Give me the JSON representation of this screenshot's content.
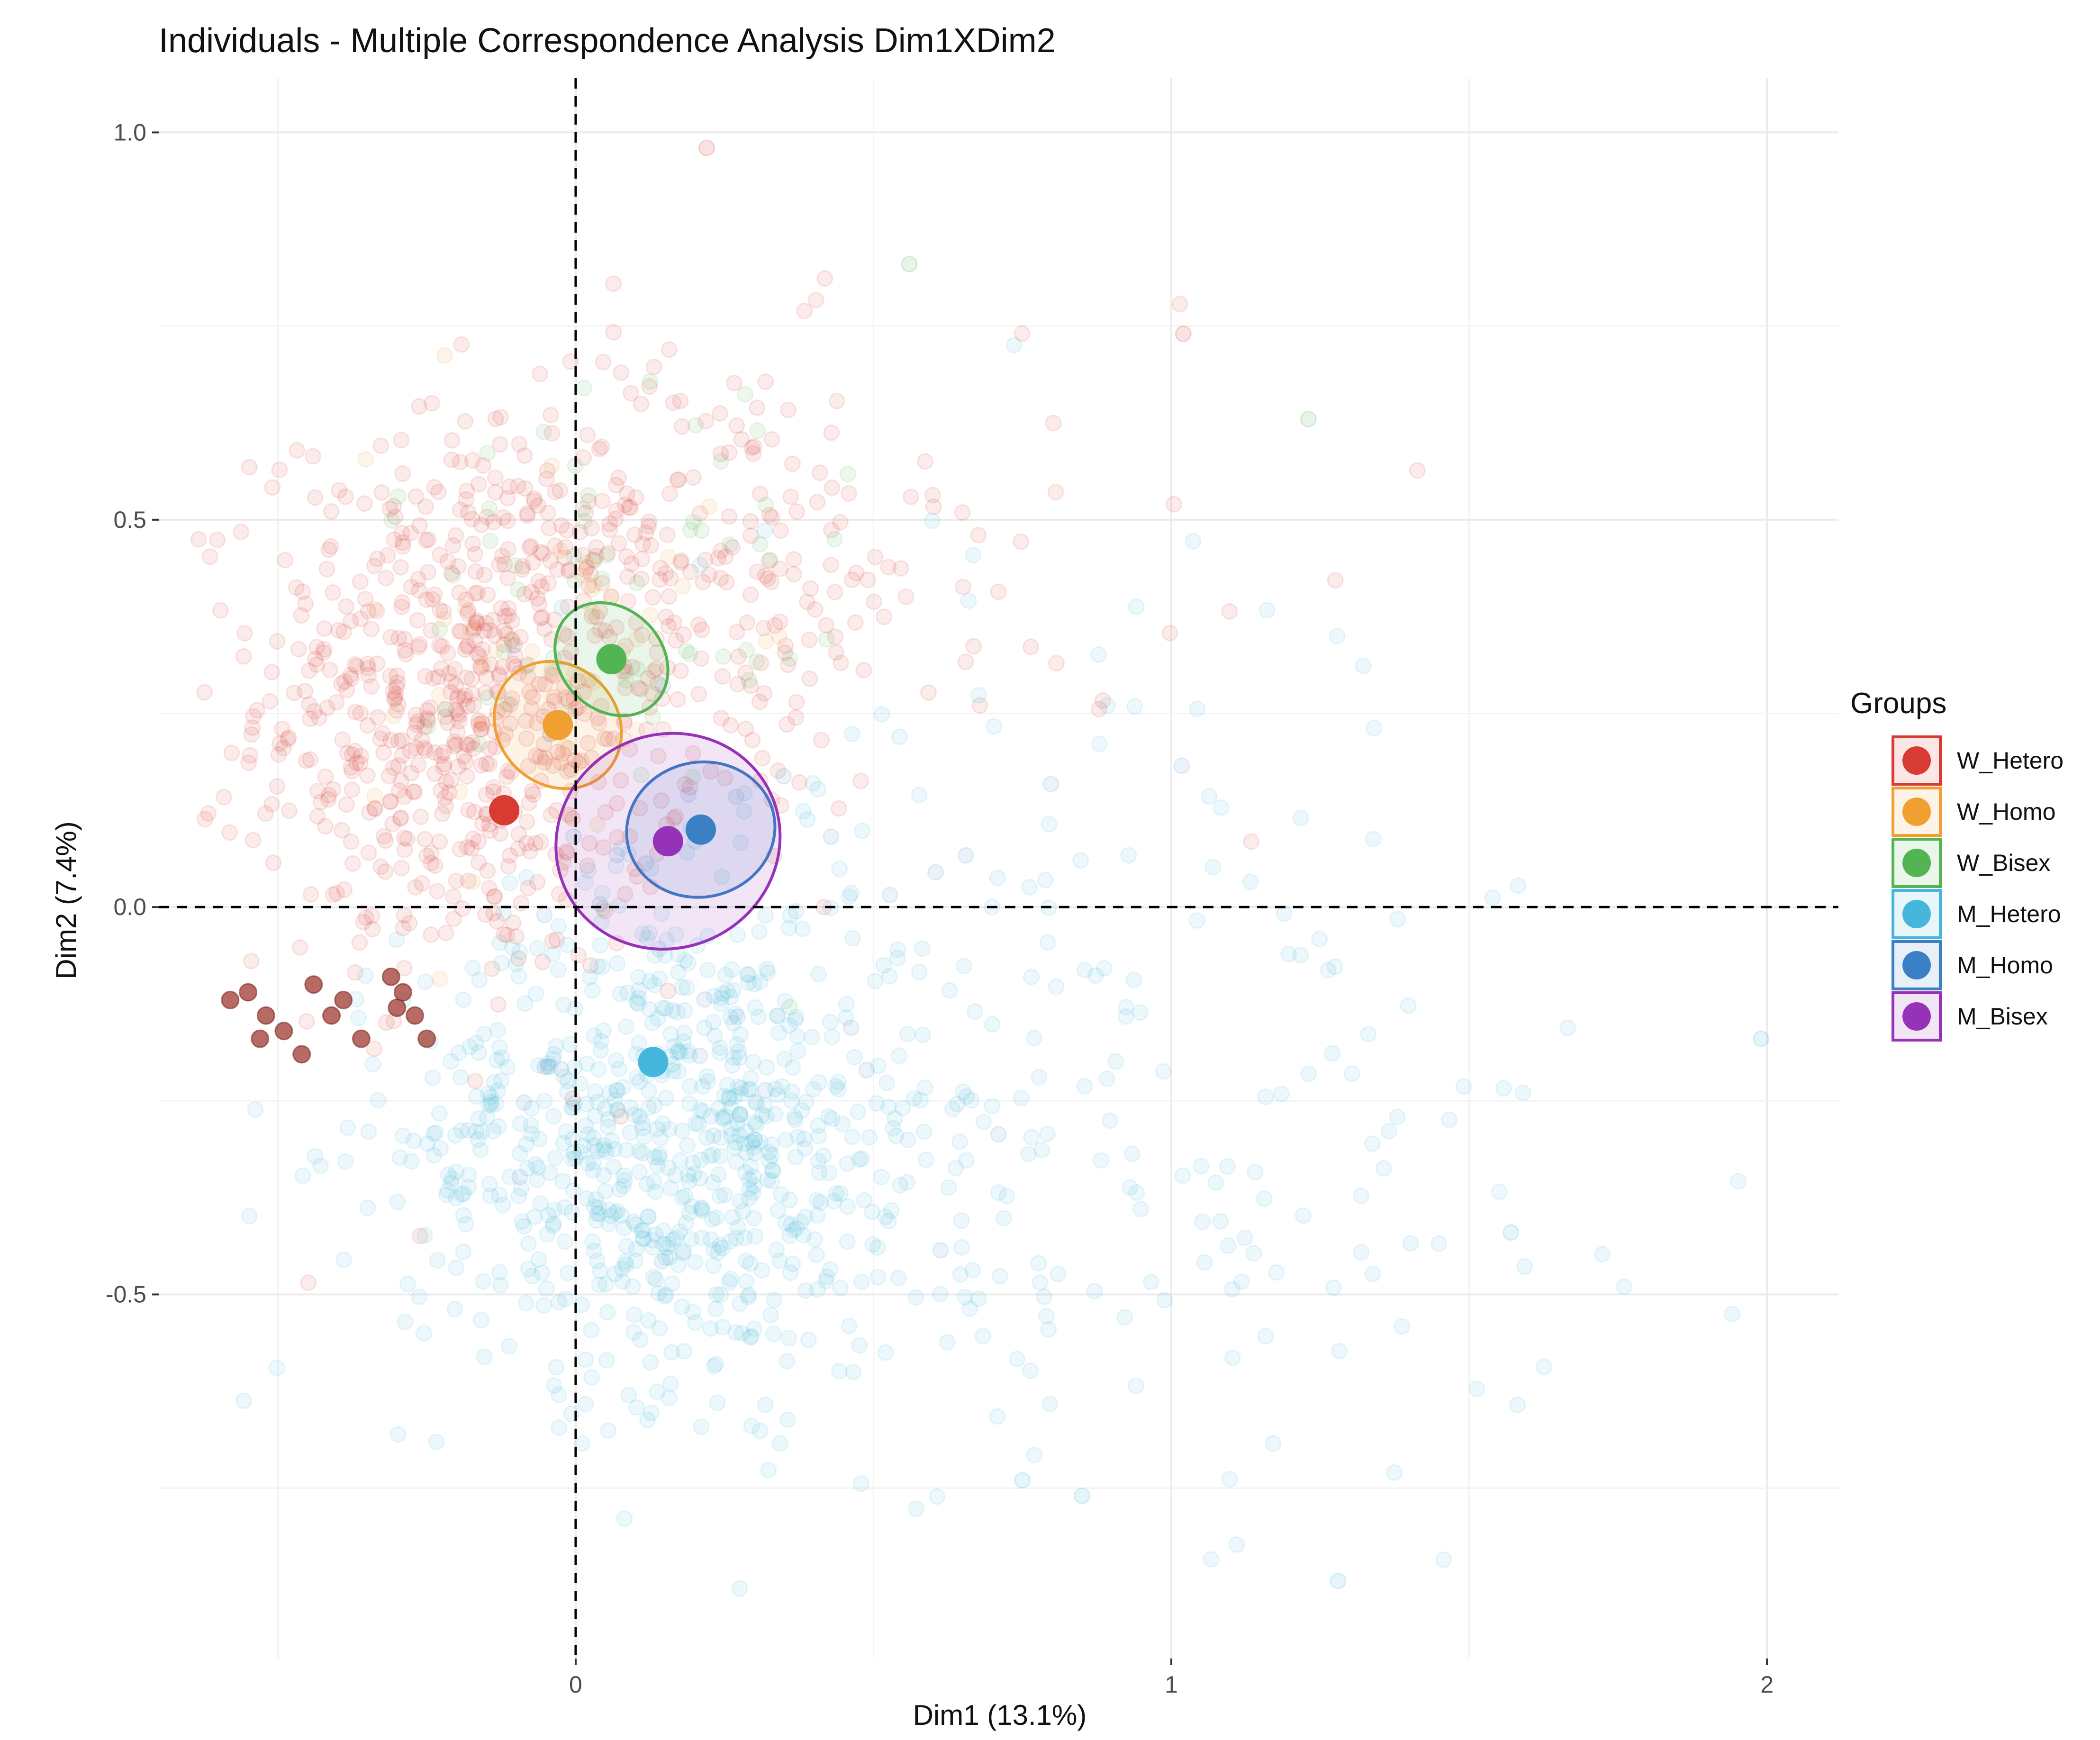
{
  "chart_data": {
    "type": "scatter",
    "title": "Individuals - Multiple Correspondence Analysis Dim1XDim2",
    "xlabel": "Dim1 (13.1%)",
    "ylabel": "Dim2 (7.4%)",
    "xlim": [
      -0.7,
      2.12
    ],
    "ylim": [
      -0.97,
      1.07
    ],
    "x_ticks": [
      {
        "value": 0,
        "label": "0"
      },
      {
        "value": 1,
        "label": "1"
      },
      {
        "value": 2,
        "label": "2"
      }
    ],
    "y_ticks": [
      {
        "value": 1.0,
        "label": "1.0"
      },
      {
        "value": 0.5,
        "label": "0.5"
      },
      {
        "value": 0.0,
        "label": "0.0"
      },
      {
        "value": -0.5,
        "label": "-0.5"
      }
    ],
    "reference_lines": {
      "x": 0,
      "y": 0,
      "style": "dashed"
    },
    "grid": true,
    "legend": {
      "title": "Groups",
      "position": "right"
    },
    "groups": [
      {
        "name": "W_Hetero",
        "color": "#d73b32",
        "centroid": [
          -0.12,
          0.125
        ]
      },
      {
        "name": "W_Homo",
        "color": "#f0a030",
        "centroid": [
          -0.03,
          0.235
        ],
        "ellipse": {
          "rx": 0.1,
          "ry": 0.06,
          "angle_deg": -45
        }
      },
      {
        "name": "W_Bisex",
        "color": "#52b453",
        "centroid": [
          0.06,
          0.32
        ],
        "ellipse": {
          "rx": 0.085,
          "ry": 0.055,
          "angle_deg": -45
        }
      },
      {
        "name": "M_Hetero",
        "color": "#45b6dc",
        "centroid": [
          0.13,
          -0.2
        ]
      },
      {
        "name": "M_Homo",
        "color": "#3b7fc4",
        "centroid": [
          0.21,
          0.1
        ],
        "ellipse": {
          "rx": 0.125,
          "ry": 0.06,
          "angle_deg": -12
        }
      },
      {
        "name": "M_Bisex",
        "color": "#9632b8",
        "centroid": [
          0.155,
          0.085
        ],
        "ellipse": {
          "rx": 0.19,
          "ry": 0.095,
          "angle_deg": -25
        }
      }
    ],
    "individuals": [
      {
        "group": "W_Hetero",
        "count": 700,
        "center": [
          -0.17,
          0.27
        ],
        "spread": [
          0.18,
          0.18
        ]
      },
      {
        "group": "W_Hetero",
        "count": 160,
        "center": [
          0.25,
          0.42
        ],
        "spread": [
          0.18,
          0.16
        ]
      },
      {
        "group": "W_Hetero",
        "count": 30,
        "center": [
          0.75,
          0.45
        ],
        "spread": [
          0.3,
          0.18
        ]
      },
      {
        "group": "M_Hetero",
        "count": 700,
        "center": [
          0.15,
          -0.3
        ],
        "spread": [
          0.22,
          0.16
        ]
      },
      {
        "group": "M_Hetero",
        "count": 180,
        "center": [
          0.8,
          -0.35
        ],
        "spread": [
          0.45,
          0.2
        ]
      },
      {
        "group": "M_Hetero",
        "count": 60,
        "center": [
          0.7,
          0.15
        ],
        "spread": [
          0.4,
          0.2
        ]
      },
      {
        "group": "W_Bisex",
        "count": 60,
        "center": [
          0.1,
          0.4
        ],
        "spread": [
          0.2,
          0.2
        ]
      },
      {
        "group": "W_Homo",
        "count": 40,
        "center": [
          -0.05,
          0.3
        ],
        "spread": [
          0.15,
          0.15
        ]
      },
      {
        "group": "M_Homo",
        "count": 30,
        "center": [
          0.3,
          -0.05
        ],
        "spread": [
          0.25,
          0.2
        ]
      }
    ],
    "highlighted_points": [
      [
        -0.58,
        -0.12
      ],
      [
        -0.55,
        -0.11
      ],
      [
        -0.52,
        -0.14
      ],
      [
        -0.53,
        -0.17
      ],
      [
        -0.49,
        -0.16
      ],
      [
        -0.46,
        -0.19
      ],
      [
        -0.44,
        -0.1
      ],
      [
        -0.41,
        -0.14
      ],
      [
        -0.39,
        -0.12
      ],
      [
        -0.36,
        -0.17
      ],
      [
        -0.31,
        -0.09
      ],
      [
        -0.3,
        -0.13
      ],
      [
        -0.27,
        -0.14
      ],
      [
        -0.25,
        -0.17
      ],
      [
        -0.29,
        -0.11
      ]
    ],
    "outliers": [
      {
        "group": "M_Hetero",
        "x": 1.99,
        "y": -0.17
      },
      {
        "group": "M_Hetero",
        "x": 1.28,
        "y": -0.87
      },
      {
        "group": "M_Hetero",
        "x": 0.85,
        "y": -0.76
      },
      {
        "group": "M_Hetero",
        "x": 0.75,
        "y": -0.74
      },
      {
        "group": "M_Hetero",
        "x": 1.57,
        "y": -0.42
      },
      {
        "group": "W_Hetero",
        "x": 0.22,
        "y": 0.98
      },
      {
        "group": "W_Hetero",
        "x": 1.02,
        "y": 0.74
      },
      {
        "group": "W_Bisex",
        "x": 0.56,
        "y": 0.83
      },
      {
        "group": "W_Bisex",
        "x": 1.23,
        "y": 0.63
      }
    ]
  }
}
